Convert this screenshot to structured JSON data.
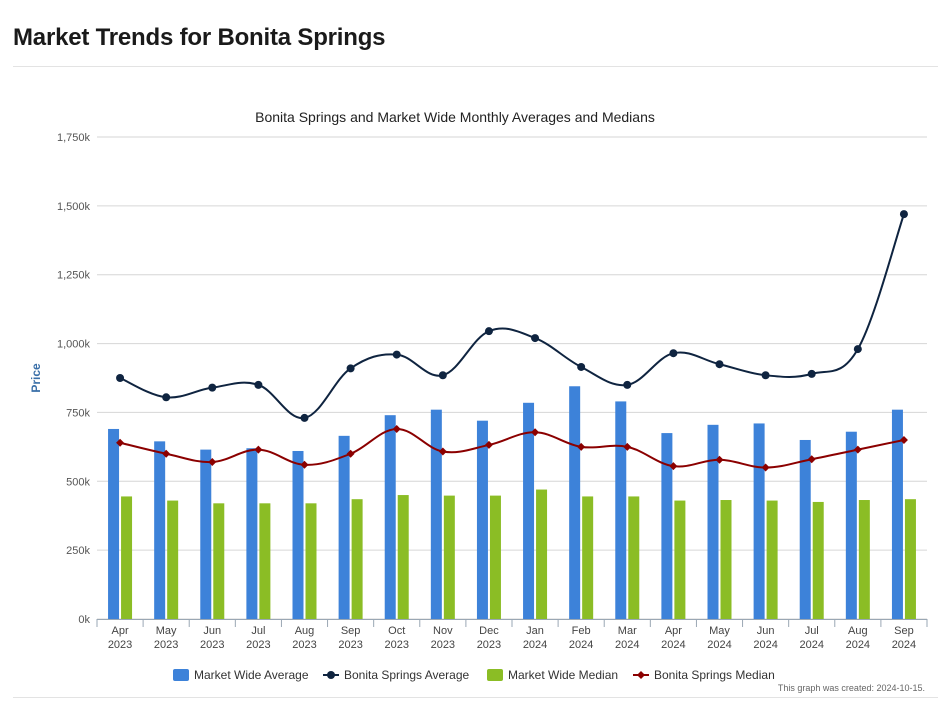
{
  "page": {
    "title": "Market Trends for Bonita Springs"
  },
  "colors": {
    "market_avg": "#3d82d9",
    "bonita_avg": "#0f2440",
    "market_median": "#8bbd25",
    "bonita_median": "#8b0000",
    "grid": "#d6d6d6",
    "axis_title": "#3a6fa8"
  },
  "chart_data": {
    "type": "bar",
    "title": "Bonita Springs and Market Wide Monthly Averages and Medians",
    "ylabel": "Price",
    "xlabel": "",
    "ylim": [
      0,
      1750000
    ],
    "y_ticks": [
      0,
      250000,
      500000,
      750000,
      1000000,
      1250000,
      1500000,
      1750000
    ],
    "y_tick_labels": [
      "0k",
      "250k",
      "500k",
      "750k",
      "1,000k",
      "1,250k",
      "1,500k",
      "1,750k"
    ],
    "categories": [
      [
        "Apr",
        "2023"
      ],
      [
        "May",
        "2023"
      ],
      [
        "Jun",
        "2023"
      ],
      [
        "Jul",
        "2023"
      ],
      [
        "Aug",
        "2023"
      ],
      [
        "Sep",
        "2023"
      ],
      [
        "Oct",
        "2023"
      ],
      [
        "Nov",
        "2023"
      ],
      [
        "Dec",
        "2023"
      ],
      [
        "Jan",
        "2024"
      ],
      [
        "Feb",
        "2024"
      ],
      [
        "Mar",
        "2024"
      ],
      [
        "Apr",
        "2024"
      ],
      [
        "May",
        "2024"
      ],
      [
        "Jun",
        "2024"
      ],
      [
        "Jul",
        "2024"
      ],
      [
        "Aug",
        "2024"
      ],
      [
        "Sep",
        "2024"
      ]
    ],
    "series": [
      {
        "name": "Market Wide Average",
        "kind": "bar",
        "color": "#3d82d9",
        "values": [
          690000,
          645000,
          615000,
          620000,
          610000,
          665000,
          740000,
          760000,
          720000,
          785000,
          845000,
          790000,
          675000,
          705000,
          710000,
          650000,
          680000,
          760000
        ]
      },
      {
        "name": "Bonita Springs Average",
        "kind": "line",
        "marker": "circle",
        "color": "#0f2440",
        "values": [
          875000,
          805000,
          840000,
          850000,
          730000,
          910000,
          960000,
          885000,
          1045000,
          1020000,
          915000,
          850000,
          965000,
          925000,
          885000,
          890000,
          980000,
          1470000
        ]
      },
      {
        "name": "Market Wide Median",
        "kind": "bar",
        "color": "#8bbd25",
        "values": [
          445000,
          430000,
          420000,
          420000,
          420000,
          435000,
          450000,
          448000,
          448000,
          470000,
          445000,
          445000,
          430000,
          432000,
          430000,
          425000,
          432000,
          435000
        ]
      },
      {
        "name": "Bonita Springs Median",
        "kind": "line",
        "marker": "diamond",
        "color": "#8b0000",
        "values": [
          640000,
          600000,
          570000,
          615000,
          560000,
          600000,
          690000,
          608000,
          632000,
          678000,
          625000,
          625000,
          555000,
          578000,
          550000,
          580000,
          615000,
          650000
        ]
      }
    ],
    "legend_position": "bottom-center",
    "credit": "This graph was created: 2024-10-15."
  }
}
